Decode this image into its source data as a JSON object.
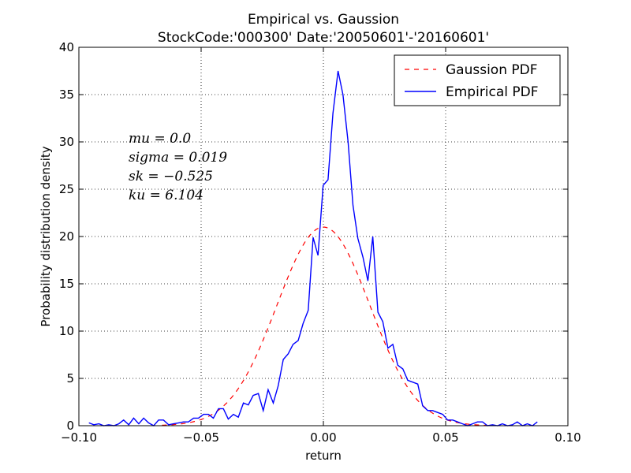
{
  "chart_data": {
    "type": "line",
    "title_line1": "Empirical vs. Gaussion",
    "title_line2": "StockCode:'000300' Date:'20050601'-'20160601'",
    "xlabel": "return",
    "ylabel": "Probability distribution density",
    "xlim": [
      -0.1,
      0.1
    ],
    "ylim": [
      0,
      40
    ],
    "grid": true,
    "legend_position": "top-right",
    "x_ticks": [
      "−0.10",
      "−0.05",
      "0.00",
      "0.05",
      "0.10"
    ],
    "y_ticks": [
      "0",
      "5",
      "10",
      "15",
      "20",
      "25",
      "30",
      "35",
      "40"
    ],
    "annotations": [
      "mu = 0.0",
      "sigma = 0.019",
      "sk = −0.525",
      "ku = 6.104"
    ],
    "series": [
      {
        "name": "Gaussion PDF",
        "style": "dashed",
        "color": "#ff0000",
        "mu": 0.0,
        "sigma": 0.019,
        "x_range": [
          -0.066,
          0.067
        ]
      },
      {
        "name": "Empirical PDF",
        "style": "solid",
        "color": "#0000ff",
        "x": [
          -0.0959,
          -0.0939,
          -0.0918,
          -0.0898,
          -0.0878,
          -0.0857,
          -0.0837,
          -0.0817,
          -0.0796,
          -0.0776,
          -0.0755,
          -0.0735,
          -0.0715,
          -0.0694,
          -0.0674,
          -0.0654,
          -0.0633,
          -0.0613,
          -0.0592,
          -0.0572,
          -0.0552,
          -0.0531,
          -0.0511,
          -0.049,
          -0.047,
          -0.045,
          -0.0429,
          -0.0409,
          -0.0389,
          -0.0368,
          -0.0348,
          -0.0327,
          -0.0307,
          -0.0287,
          -0.0266,
          -0.0246,
          -0.0226,
          -0.0205,
          -0.0185,
          -0.0164,
          -0.0144,
          -0.0124,
          -0.0103,
          -0.0083,
          -0.0062,
          -0.0042,
          -0.0022,
          -0.0001,
          0.0019,
          0.0039,
          0.006,
          0.008,
          0.0101,
          0.0121,
          0.0141,
          0.0162,
          0.0182,
          0.0202,
          0.0223,
          0.0243,
          0.0264,
          0.0284,
          0.0304,
          0.0325,
          0.0345,
          0.0366,
          0.0386,
          0.0406,
          0.0427,
          0.0447,
          0.0467,
          0.0488,
          0.0508,
          0.0529,
          0.0549,
          0.0569,
          0.059,
          0.061,
          0.063,
          0.0651,
          0.0671,
          0.0692,
          0.0712,
          0.0732,
          0.0753,
          0.0773,
          0.0793,
          0.0814,
          0.0834,
          0.0855,
          0.0875
        ],
        "y": [
          0.3,
          0.1,
          0.2,
          0.0,
          0.1,
          0.0,
          0.2,
          0.6,
          0.1,
          0.8,
          0.2,
          0.8,
          0.3,
          0.0,
          0.6,
          0.6,
          0.1,
          0.2,
          0.3,
          0.4,
          0.4,
          0.8,
          0.8,
          1.2,
          1.2,
          0.8,
          1.8,
          1.8,
          0.7,
          1.2,
          0.9,
          2.4,
          2.2,
          3.2,
          3.4,
          1.6,
          3.8,
          2.4,
          4.2,
          7.0,
          7.6,
          8.6,
          9.0,
          10.8,
          12.2,
          19.9,
          18.0,
          25.4,
          26.0,
          33.0,
          37.5,
          35.0,
          30.0,
          23.3,
          19.8,
          17.8,
          15.3,
          20.0,
          12.0,
          11.0,
          8.2,
          8.6,
          6.4,
          6.0,
          4.8,
          4.6,
          4.4,
          2.1,
          1.6,
          1.6,
          1.4,
          1.2,
          0.6,
          0.6,
          0.4,
          0.2,
          0.0,
          0.2,
          0.4,
          0.4,
          0.0,
          0.1,
          0.0,
          0.2,
          0.0,
          0.1,
          0.4,
          0.0,
          0.2,
          0.0,
          0.4
        ]
      }
    ]
  }
}
